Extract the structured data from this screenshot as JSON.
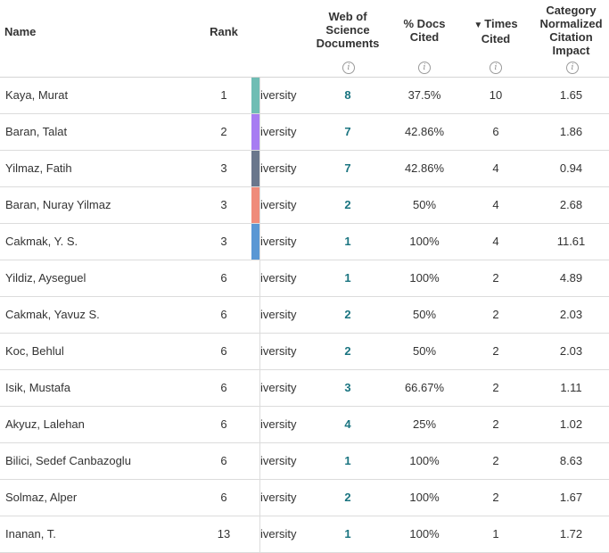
{
  "header": {
    "name": "Name",
    "rank": "Rank",
    "wos": "Web of Science Documents",
    "docs_cited": "% Docs Cited",
    "times_cited": "Times Cited",
    "sort_indicator": "▼",
    "cnci": "Category Normalized Citation Impact",
    "info_glyph": "i"
  },
  "rows": [
    {
      "name": "Kaya, Murat",
      "rank": "1",
      "inst": "iversity",
      "wos": "8",
      "docs": "37.5%",
      "times": "10",
      "cnci": "1.65",
      "color": "#6fbdb4"
    },
    {
      "name": "Baran, Talat",
      "rank": "2",
      "inst": "iversity",
      "wos": "7",
      "docs": "42.86%",
      "times": "6",
      "cnci": "1.86",
      "color": "#a77cf2"
    },
    {
      "name": "Yilmaz, Fatih",
      "rank": "3",
      "inst": "iversity",
      "wos": "7",
      "docs": "42.86%",
      "times": "4",
      "cnci": "0.94",
      "color": "#6a778c"
    },
    {
      "name": "Baran, Nuray Yilmaz",
      "rank": "3",
      "inst": "iversity",
      "wos": "2",
      "docs": "50%",
      "times": "4",
      "cnci": "2.68",
      "color": "#ef8b7a"
    },
    {
      "name": "Cakmak, Y. S.",
      "rank": "3",
      "inst": "iversity",
      "wos": "1",
      "docs": "100%",
      "times": "4",
      "cnci": "11.61",
      "color": "#5a97d4"
    },
    {
      "name": "Yildiz, Ayseguel",
      "rank": "6",
      "inst": "iversity",
      "wos": "1",
      "docs": "100%",
      "times": "2",
      "cnci": "4.89",
      "color": ""
    },
    {
      "name": "Cakmak, Yavuz S.",
      "rank": "6",
      "inst": "iversity",
      "wos": "2",
      "docs": "50%",
      "times": "2",
      "cnci": "2.03",
      "color": ""
    },
    {
      "name": "Koc, Behlul",
      "rank": "6",
      "inst": "iversity",
      "wos": "2",
      "docs": "50%",
      "times": "2",
      "cnci": "2.03",
      "color": ""
    },
    {
      "name": "Isik, Mustafa",
      "rank": "6",
      "inst": "iversity",
      "wos": "3",
      "docs": "66.67%",
      "times": "2",
      "cnci": "1.11",
      "color": ""
    },
    {
      "name": "Akyuz, Lalehan",
      "rank": "6",
      "inst": "iversity",
      "wos": "4",
      "docs": "25%",
      "times": "2",
      "cnci": "1.02",
      "color": ""
    },
    {
      "name": "Bilici, Sedef Canbazoglu",
      "rank": "6",
      "inst": "iversity",
      "wos": "1",
      "docs": "100%",
      "times": "2",
      "cnci": "8.63",
      "color": ""
    },
    {
      "name": "Solmaz, Alper",
      "rank": "6",
      "inst": "iversity",
      "wos": "2",
      "docs": "100%",
      "times": "2",
      "cnci": "1.67",
      "color": ""
    },
    {
      "name": "Inanan, T.",
      "rank": "13",
      "inst": "iversity",
      "wos": "1",
      "docs": "100%",
      "times": "1",
      "cnci": "1.72",
      "color": ""
    }
  ]
}
